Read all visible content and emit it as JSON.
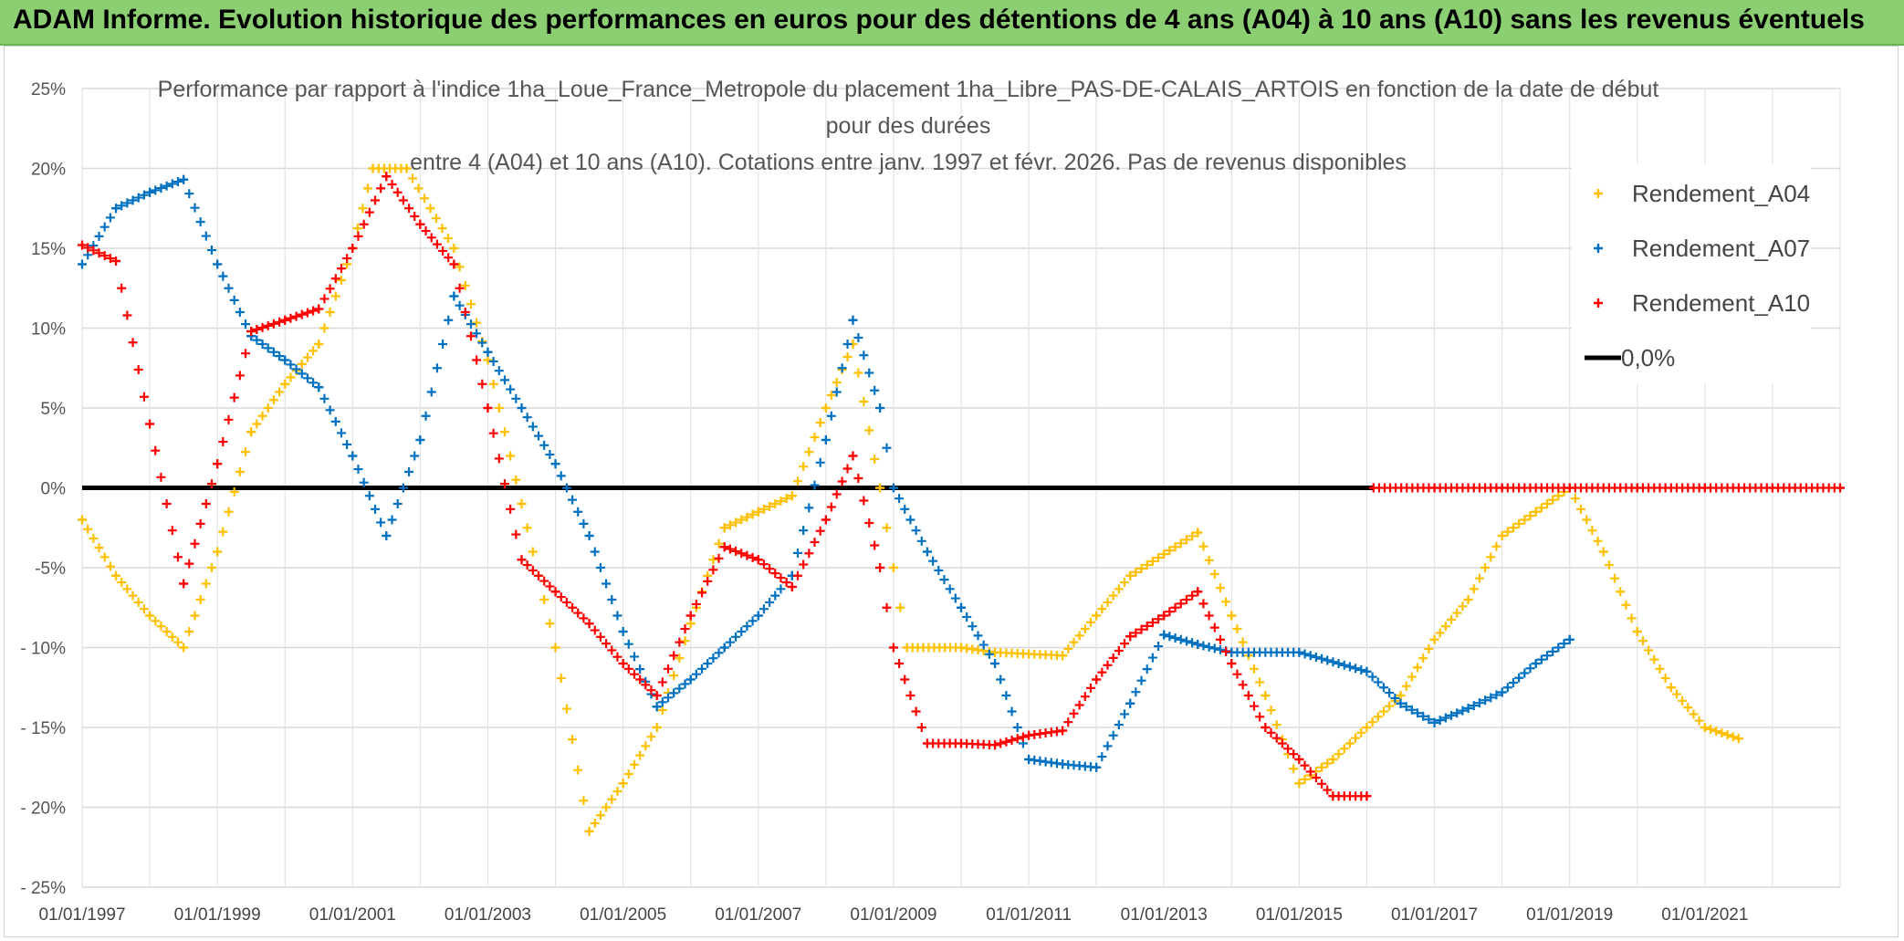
{
  "banner": {
    "title": "ADAM Informe. Evolution historique des performances en euros pour des détentions de 4 ans (A04) à 10 ans (A10) sans les revenus éventuels"
  },
  "chart_data": {
    "type": "scatter",
    "title_lines": [
      "Performance par rapport à l'indice 1ha_Loue_France_Metropole  du placement 1ha_Libre_PAS-DE-CALAIS_ARTOIS en fonction de la date de début",
      "pour des durées",
      "entre 4 (A04) et 10 ans (A10). Cotations entre janv. 1997 et févr. 2026. Pas de revenus disponibles"
    ],
    "xlabel": "",
    "ylabel": "",
    "xlim": [
      1997.0,
      2023.0
    ],
    "ylim": [
      -25,
      25
    ],
    "grid": true,
    "x_tick_values": [
      1997,
      1999,
      2001,
      2003,
      2005,
      2007,
      2009,
      2011,
      2013,
      2015,
      2017,
      2019,
      2021
    ],
    "x_tick_labels": [
      "01/01/1997",
      "01/01/1999",
      "01/01/2001",
      "01/01/2003",
      "01/01/2005",
      "01/01/2007",
      "01/01/2009",
      "01/01/2011",
      "01/01/2013",
      "01/01/2015",
      "01/01/2017",
      "01/01/2019",
      "01/01/2021"
    ],
    "y_tick_values": [
      25,
      20,
      15,
      10,
      5,
      0,
      -5,
      -10,
      -15,
      -20,
      -25
    ],
    "y_tick_labels": [
      "25%",
      "20%",
      "15%",
      "10%",
      "5%",
      "0%",
      "-5%",
      "- 10%",
      "- 15%",
      "- 20%",
      "- 25%"
    ],
    "legend_position": "top-right",
    "legend": [
      "Rendement_A04",
      "Rendement_A07",
      "Rendement_A10",
      "0,0%"
    ],
    "series": [
      {
        "name": "Rendement_A04",
        "color": "#ffc000",
        "marker": "plus",
        "points": [
          [
            1997.0,
            -2.0
          ],
          [
            1997.5,
            -5.5
          ],
          [
            1998.0,
            -8.0
          ],
          [
            1998.5,
            -10.0
          ],
          [
            1999.0,
            -4.0
          ],
          [
            1999.5,
            3.5
          ],
          [
            2000.0,
            6.5
          ],
          [
            2000.5,
            9.0
          ],
          [
            2001.0,
            15.0
          ],
          [
            2001.3,
            20.0
          ],
          [
            2001.8,
            20.0
          ],
          [
            2002.5,
            15.0
          ],
          [
            2003.0,
            8.0
          ],
          [
            2003.5,
            -1.0
          ],
          [
            2004.0,
            -10.0
          ],
          [
            2004.5,
            -21.5
          ],
          [
            2005.0,
            -18.5
          ],
          [
            2005.5,
            -15.0
          ],
          [
            2006.0,
            -8.5
          ],
          [
            2006.5,
            -2.5
          ],
          [
            2007.0,
            -1.5
          ],
          [
            2007.5,
            -0.5
          ],
          [
            2008.0,
            5.0
          ],
          [
            2008.4,
            9.0
          ],
          [
            2008.8,
            0.0
          ],
          [
            2009.0,
            -5.0
          ],
          [
            2009.2,
            -10.0
          ],
          [
            2010.0,
            -10.0
          ],
          [
            2010.5,
            -10.3
          ],
          [
            2011.5,
            -10.5
          ],
          [
            2012.0,
            -8.0
          ],
          [
            2012.5,
            -5.5
          ],
          [
            2013.5,
            -2.8
          ],
          [
            2014.0,
            -8.0
          ],
          [
            2014.5,
            -13.0
          ],
          [
            2015.0,
            -18.5
          ],
          [
            2015.5,
            -17.0
          ],
          [
            2016.5,
            -13.0
          ],
          [
            2017.0,
            -9.5
          ],
          [
            2017.5,
            -7.0
          ],
          [
            2018.0,
            -3.0
          ],
          [
            2018.5,
            -1.5
          ],
          [
            2019.0,
            0.0
          ],
          [
            2019.5,
            -4.0
          ],
          [
            2020.0,
            -9.0
          ],
          [
            2020.5,
            -12.5
          ],
          [
            2021.0,
            -15.0
          ],
          [
            2021.5,
            -15.7
          ]
        ]
      },
      {
        "name": "Rendement_A07",
        "color": "#0070c0",
        "marker": "plus",
        "points": [
          [
            1997.0,
            14.0
          ],
          [
            1997.5,
            17.5
          ],
          [
            1998.0,
            18.5
          ],
          [
            1998.5,
            19.3
          ],
          [
            1999.0,
            14.0
          ],
          [
            1999.5,
            9.5
          ],
          [
            2000.0,
            8.0
          ],
          [
            2000.5,
            6.3
          ],
          [
            2001.0,
            2.0
          ],
          [
            2001.5,
            -3.0
          ],
          [
            2002.0,
            3.0
          ],
          [
            2002.5,
            12.0
          ],
          [
            2003.0,
            8.5
          ],
          [
            2003.5,
            5.0
          ],
          [
            2004.0,
            1.5
          ],
          [
            2004.5,
            -3.0
          ],
          [
            2005.0,
            -9.0
          ],
          [
            2005.5,
            -13.7
          ],
          [
            2006.0,
            -12.0
          ],
          [
            2006.5,
            -10.0
          ],
          [
            2007.0,
            -8.0
          ],
          [
            2007.5,
            -5.5
          ],
          [
            2008.0,
            3.0
          ],
          [
            2008.4,
            10.5
          ],
          [
            2008.8,
            5.0
          ],
          [
            2009.0,
            0.0
          ],
          [
            2009.5,
            -4.0
          ],
          [
            2010.0,
            -7.5
          ],
          [
            2010.5,
            -11.0
          ],
          [
            2011.0,
            -17.0
          ],
          [
            2011.5,
            -17.3
          ],
          [
            2012.0,
            -17.5
          ],
          [
            2012.5,
            -13.5
          ],
          [
            2013.0,
            -9.2
          ],
          [
            2013.5,
            -9.8
          ],
          [
            2014.0,
            -10.3
          ],
          [
            2015.0,
            -10.3
          ],
          [
            2016.0,
            -11.5
          ],
          [
            2016.5,
            -13.5
          ],
          [
            2017.0,
            -14.7
          ],
          [
            2017.5,
            -13.8
          ],
          [
            2018.0,
            -12.8
          ],
          [
            2018.5,
            -11.0
          ],
          [
            2019.0,
            -9.5
          ]
        ]
      },
      {
        "name": "Rendement_A10",
        "color": "#ff0000",
        "marker": "plus",
        "points": [
          [
            1997.0,
            15.2
          ],
          [
            1997.5,
            14.2
          ],
          [
            1998.0,
            4.0
          ],
          [
            1998.5,
            -6.0
          ],
          [
            1999.0,
            1.5
          ],
          [
            1999.5,
            9.8
          ],
          [
            2000.0,
            10.5
          ],
          [
            2000.5,
            11.2
          ],
          [
            2001.0,
            15.0
          ],
          [
            2001.5,
            19.5
          ],
          [
            2002.0,
            16.5
          ],
          [
            2002.5,
            14.0
          ],
          [
            2003.0,
            5.0
          ],
          [
            2003.5,
            -4.5
          ],
          [
            2004.0,
            -6.5
          ],
          [
            2004.5,
            -8.5
          ],
          [
            2005.0,
            -11.0
          ],
          [
            2005.5,
            -13.0
          ],
          [
            2006.0,
            -8.0
          ],
          [
            2006.5,
            -3.7
          ],
          [
            2007.0,
            -4.5
          ],
          [
            2007.5,
            -6.2
          ],
          [
            2008.0,
            -2.0
          ],
          [
            2008.4,
            2.0
          ],
          [
            2008.8,
            -5.0
          ],
          [
            2009.0,
            -10.0
          ],
          [
            2009.5,
            -16.0
          ],
          [
            2010.0,
            -16.0
          ],
          [
            2010.5,
            -16.1
          ],
          [
            2011.0,
            -15.5
          ],
          [
            2011.5,
            -15.2
          ],
          [
            2012.0,
            -12.0
          ],
          [
            2012.5,
            -9.3
          ],
          [
            2013.0,
            -8.0
          ],
          [
            2013.5,
            -6.5
          ],
          [
            2014.0,
            -11.0
          ],
          [
            2014.5,
            -15.0
          ],
          [
            2015.0,
            -17.0
          ],
          [
            2015.5,
            -19.3
          ],
          [
            2016.0,
            -19.3
          ],
          [
            2016.1,
            0.0
          ],
          [
            2017.0,
            0.0
          ],
          [
            2018.0,
            0.0
          ],
          [
            2019.0,
            0.0
          ],
          [
            2020.0,
            0.0
          ],
          [
            2021.0,
            0.0
          ],
          [
            2022.0,
            0.0
          ],
          [
            2023.0,
            0.0
          ]
        ]
      },
      {
        "name": "0,0%",
        "color": "#000000",
        "marker": "line",
        "points": [
          [
            1997.0,
            0.0
          ],
          [
            2016.1,
            0.0
          ]
        ]
      }
    ]
  }
}
